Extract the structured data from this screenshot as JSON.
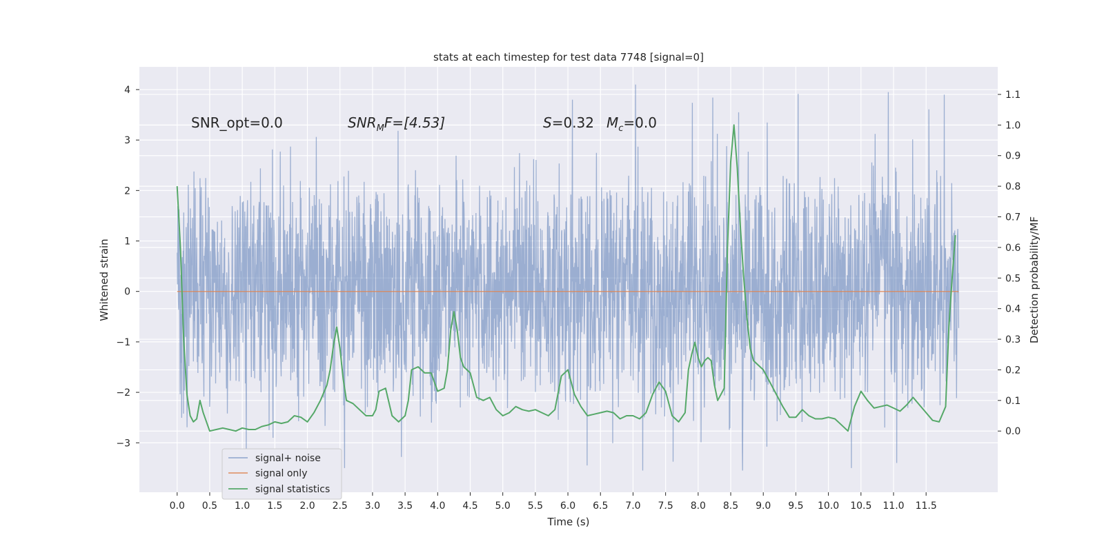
{
  "chart_data": {
    "type": "line",
    "title": "stats at each timestep for test data 7748 [signal=0]",
    "xlabel": "Time (s)",
    "ylabel_left": "Whitened strain",
    "ylabel_right": "Detection probability/MF",
    "xlim": [
      -0.58,
      12.6
    ],
    "ylim_left": [
      -3.98,
      4.45
    ],
    "ylim_right": [
      -0.2,
      1.19
    ],
    "x_ticks": [
      0.0,
      0.5,
      1.0,
      1.5,
      2.0,
      2.5,
      3.0,
      3.5,
      4.0,
      4.5,
      5.0,
      5.5,
      6.0,
      6.5,
      7.0,
      7.5,
      8.0,
      8.5,
      9.0,
      9.5,
      10.0,
      10.5,
      11.0,
      11.5
    ],
    "x_tick_labels": [
      "0.0",
      "0.5",
      "1.0",
      "1.5",
      "2.0",
      "2.5",
      "3.0",
      "3.5",
      "4.0",
      "4.5",
      "5.0",
      "5.5",
      "6.0",
      "6.5",
      "7.0",
      "7.5",
      "8.0",
      "8.5",
      "9.0",
      "9.5",
      "10.0",
      "10.5",
      "11.0",
      "11.5"
    ],
    "y_ticks_left": [
      -3,
      -2,
      -1,
      0,
      1,
      2,
      3,
      4
    ],
    "y_tick_labels_left": [
      "−3",
      "−2",
      "−1",
      "0",
      "1",
      "2",
      "3",
      "4"
    ],
    "y_ticks_right": [
      0.0,
      0.1,
      0.2,
      0.3,
      0.4,
      0.5,
      0.6,
      0.7,
      0.8,
      0.9,
      1.0,
      1.1
    ],
    "y_tick_labels_right": [
      "0.0",
      "0.1",
      "0.2",
      "0.3",
      "0.4",
      "0.5",
      "0.6",
      "0.7",
      "0.8",
      "0.9",
      "1.0",
      "1.1"
    ],
    "grid": true,
    "legend_position": "bottom-left",
    "annotations": {
      "snr_opt": "SNR_opt=0.0",
      "snr_mf_prefix": "SNR",
      "snr_mf_sub": "M",
      "snr_mf_suffix": "F=[4.53]",
      "s_prefix": "S",
      "s_value": "=0.32",
      "mc_prefix": "M",
      "mc_sub": "c",
      "mc_value": "=0.0"
    },
    "series": [
      {
        "name": "signal+ noise",
        "color": "#4c72b0",
        "opacity": 0.5,
        "x_range": [
          0.0,
          12.0
        ],
        "envelope": {
          "typical_min": -1.6,
          "typical_max": 1.5,
          "extreme_min": -3.55,
          "extreme_max": 4.1
        },
        "notable_peaks": [
          {
            "x": 7.04,
            "y": 4.1
          },
          {
            "x": 10.92,
            "y": 3.95
          },
          {
            "x": 11.78,
            "y": 3.9
          },
          {
            "x": 8.62,
            "y": 3.55
          },
          {
            "x": 6.07,
            "y": 3.8
          },
          {
            "x": 2.57,
            "y": -3.5
          },
          {
            "x": 10.35,
            "y": -3.5
          },
          {
            "x": 8.68,
            "y": -3.55
          },
          {
            "x": 11.05,
            "y": -3.4
          }
        ]
      },
      {
        "name": "signal only",
        "color": "#dd8452",
        "x": [
          0.0,
          12.0
        ],
        "y": [
          0.0,
          0.0
        ]
      },
      {
        "name": "signal statistics",
        "color": "#55a868",
        "axis": "right",
        "x": [
          0.0,
          0.05,
          0.1,
          0.15,
          0.2,
          0.25,
          0.3,
          0.35,
          0.4,
          0.5,
          0.6,
          0.7,
          0.8,
          0.9,
          1.0,
          1.1,
          1.2,
          1.3,
          1.4,
          1.5,
          1.6,
          1.7,
          1.8,
          1.9,
          2.0,
          2.1,
          2.2,
          2.3,
          2.35,
          2.4,
          2.45,
          2.5,
          2.55,
          2.6,
          2.7,
          2.8,
          2.9,
          3.0,
          3.05,
          3.1,
          3.2,
          3.3,
          3.4,
          3.5,
          3.55,
          3.6,
          3.7,
          3.8,
          3.9,
          4.0,
          4.1,
          4.15,
          4.2,
          4.25,
          4.3,
          4.35,
          4.4,
          4.5,
          4.6,
          4.7,
          4.8,
          4.9,
          5.0,
          5.1,
          5.2,
          5.3,
          5.4,
          5.5,
          5.6,
          5.7,
          5.8,
          5.9,
          6.0,
          6.1,
          6.2,
          6.3,
          6.4,
          6.5,
          6.6,
          6.7,
          6.8,
          6.9,
          7.0,
          7.1,
          7.2,
          7.3,
          7.4,
          7.5,
          7.6,
          7.7,
          7.8,
          7.85,
          7.9,
          7.95,
          8.0,
          8.05,
          8.1,
          8.15,
          8.2,
          8.25,
          8.3,
          8.35,
          8.4,
          8.45,
          8.5,
          8.55,
          8.6,
          8.65,
          8.7,
          8.75,
          8.8,
          8.85,
          8.9,
          9.0,
          9.1,
          9.2,
          9.3,
          9.4,
          9.5,
          9.6,
          9.7,
          9.8,
          9.9,
          10.0,
          10.1,
          10.2,
          10.3,
          10.4,
          10.5,
          10.6,
          10.7,
          10.8,
          10.9,
          11.0,
          11.1,
          11.2,
          11.3,
          11.4,
          11.5,
          11.6,
          11.7,
          11.8,
          11.85,
          11.9,
          11.95
        ],
        "y": [
          0.8,
          0.6,
          0.3,
          0.12,
          0.05,
          0.03,
          0.04,
          0.1,
          0.06,
          0.0,
          0.005,
          0.01,
          0.005,
          0.0,
          0.01,
          0.005,
          0.005,
          0.015,
          0.02,
          0.03,
          0.025,
          0.03,
          0.05,
          0.045,
          0.03,
          0.06,
          0.1,
          0.15,
          0.2,
          0.28,
          0.34,
          0.27,
          0.17,
          0.1,
          0.09,
          0.07,
          0.05,
          0.05,
          0.07,
          0.13,
          0.14,
          0.05,
          0.03,
          0.05,
          0.1,
          0.2,
          0.21,
          0.19,
          0.19,
          0.13,
          0.14,
          0.2,
          0.33,
          0.39,
          0.33,
          0.24,
          0.21,
          0.19,
          0.11,
          0.1,
          0.11,
          0.07,
          0.05,
          0.06,
          0.08,
          0.07,
          0.065,
          0.07,
          0.06,
          0.05,
          0.07,
          0.18,
          0.2,
          0.12,
          0.08,
          0.05,
          0.055,
          0.06,
          0.065,
          0.06,
          0.04,
          0.05,
          0.05,
          0.04,
          0.06,
          0.12,
          0.16,
          0.13,
          0.05,
          0.03,
          0.06,
          0.2,
          0.25,
          0.29,
          0.24,
          0.21,
          0.23,
          0.24,
          0.23,
          0.15,
          0.1,
          0.12,
          0.14,
          0.6,
          0.88,
          1.0,
          0.86,
          0.66,
          0.5,
          0.37,
          0.27,
          0.23,
          0.22,
          0.2,
          0.16,
          0.12,
          0.08,
          0.045,
          0.045,
          0.07,
          0.05,
          0.04,
          0.04,
          0.045,
          0.04,
          0.02,
          0.0,
          0.08,
          0.13,
          0.1,
          0.075,
          0.08,
          0.085,
          0.075,
          0.065,
          0.085,
          0.11,
          0.085,
          0.06,
          0.035,
          0.03,
          0.08,
          0.34,
          0.5,
          0.64
        ]
      }
    ]
  }
}
